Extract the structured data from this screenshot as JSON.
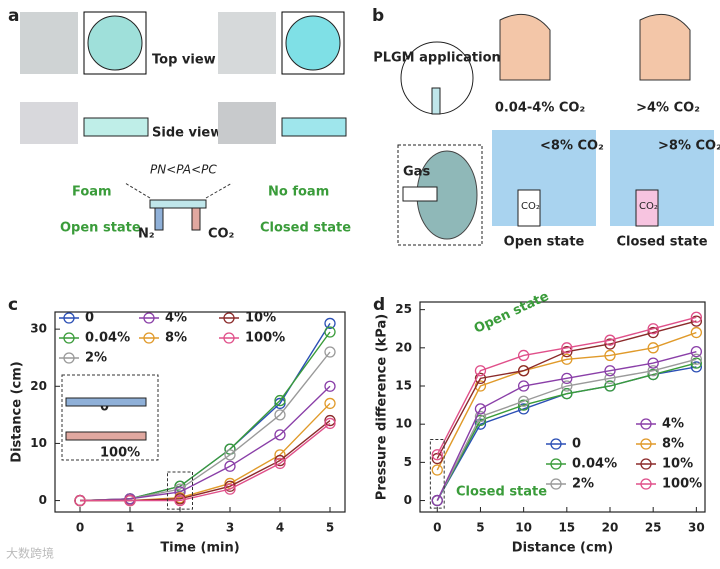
{
  "panel_a": {
    "label": "a",
    "top_view": "Top view",
    "side_view": "Side view",
    "equation": "PN<PA<PC",
    "foam": "Foam",
    "no_foam": "No foam",
    "open_state": "Open state",
    "closed_state": "Closed state",
    "n2": "N₂",
    "co2": "CO₂"
  },
  "panel_b": {
    "label": "b",
    "application": "PLGM application",
    "low_range": "0.04-4% CO₂",
    "high_range": ">4% CO₂",
    "below": "<8% CO₂",
    "above": ">8% CO₂",
    "gas": "Gas",
    "co2_open": "CO₂",
    "co2_closed": "CO₂",
    "open_state": "Open state",
    "closed_state": "Closed state"
  },
  "watermark": "大数跨境",
  "chart_data": [
    {
      "type": "line",
      "panel_label": "c",
      "x_label": "Time (min)",
      "y_label": "Distance (cm)",
      "x": [
        0,
        1,
        2,
        3,
        4,
        5
      ],
      "xlim": [
        -0.5,
        5.3
      ],
      "xticks": [
        0,
        1,
        2,
        3,
        4,
        5
      ],
      "ylim": [
        -2,
        33
      ],
      "yticks": [
        0,
        10,
        20,
        30
      ],
      "legend": "top",
      "annotations": [
        "0",
        "100%"
      ],
      "series": [
        {
          "name": "0",
          "color": "#2b4fb5",
          "values": [
            0,
            0.3,
            2.5,
            9,
            17,
            31
          ]
        },
        {
          "name": "0.04%",
          "color": "#3a9c3a",
          "values": [
            0,
            0.3,
            2.5,
            9,
            17.5,
            29.5
          ]
        },
        {
          "name": "2%",
          "color": "#9a9a9a",
          "values": [
            0,
            0.3,
            2,
            8,
            15,
            26
          ]
        },
        {
          "name": "4%",
          "color": "#8a3fa8",
          "values": [
            0,
            0.3,
            1.5,
            6,
            11.5,
            20
          ]
        },
        {
          "name": "8%",
          "color": "#e09a2a",
          "values": [
            0,
            0,
            0.5,
            3,
            8,
            17
          ]
        },
        {
          "name": "10%",
          "color": "#8b2a2a",
          "values": [
            0,
            0,
            0.3,
            2.5,
            7,
            14
          ]
        },
        {
          "name": "100%",
          "color": "#e0508a",
          "values": [
            0,
            0,
            0,
            2,
            6.5,
            13.5
          ]
        }
      ]
    },
    {
      "type": "line",
      "panel_label": "d",
      "x_label": "Distance (cm)",
      "y_label": "Pressure difference (kPa)",
      "x": [
        0,
        5,
        10,
        15,
        20,
        25,
        30
      ],
      "xlim": [
        -2,
        31
      ],
      "xticks": [
        0,
        5,
        10,
        15,
        20,
        25,
        30
      ],
      "ylim": [
        -1.5,
        26
      ],
      "yticks": [
        0,
        5,
        10,
        15,
        20,
        25
      ],
      "legend": "lower right",
      "annotations": [
        "Open state",
        "Closed state"
      ],
      "series": [
        {
          "name": "0",
          "color": "#2b4fb5",
          "values": [
            0,
            10,
            12,
            14,
            15,
            16.5,
            17.5
          ]
        },
        {
          "name": "0.04%",
          "color": "#3a9c3a",
          "values": [
            0,
            10.5,
            12.5,
            14,
            15,
            16.5,
            18
          ]
        },
        {
          "name": "2%",
          "color": "#9a9a9a",
          "values": [
            0,
            11,
            13,
            15,
            16,
            17,
            18.5
          ]
        },
        {
          "name": "4%",
          "color": "#8a3fa8",
          "values": [
            0,
            12,
            15,
            16,
            17,
            18,
            19.5
          ]
        },
        {
          "name": "8%",
          "color": "#e09a2a",
          "values": [
            4,
            15,
            17,
            18.5,
            19,
            20,
            22
          ]
        },
        {
          "name": "10%",
          "color": "#8b2a2a",
          "values": [
            5.5,
            16,
            17,
            19.5,
            20.5,
            22,
            23.5
          ]
        },
        {
          "name": "100%",
          "color": "#e0508a",
          "values": [
            6,
            17,
            19,
            20,
            21,
            22.5,
            24
          ]
        }
      ]
    }
  ]
}
